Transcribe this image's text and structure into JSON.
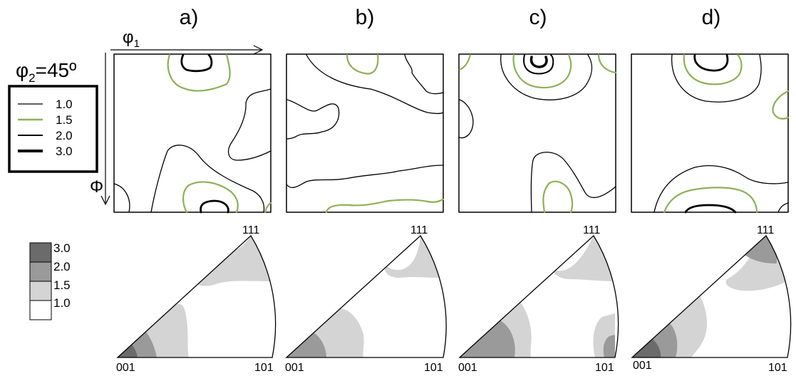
{
  "panel_labels": [
    "a)",
    "b)",
    "c)",
    "d)"
  ],
  "axes": {
    "horizontal": "φ",
    "horizontal_sub": "1",
    "vertical": "Φ"
  },
  "section_label": {
    "prefix": "φ",
    "sub": "2",
    "value": "=45º"
  },
  "odf_legend": [
    {
      "label": "1.0",
      "color": "#000000"
    },
    {
      "label": "1.5",
      "color": "#8db156"
    },
    {
      "label": "2.0",
      "color": "#000000"
    },
    {
      "label": "3.0",
      "color": "#000000"
    }
  ],
  "ipf_legend": [
    {
      "label": "3.0",
      "color": "#6b6b6b"
    },
    {
      "label": "2.0",
      "color": "#9a9a9a"
    },
    {
      "label": "1.5",
      "color": "#d4d4d4"
    },
    {
      "label": "1.0",
      "color": "#ffffff"
    }
  ],
  "ipf_corners": {
    "top": "111",
    "left": "001",
    "right": "101"
  },
  "colors": {
    "contour_black": "#000000",
    "contour_green": "#8db156"
  }
}
